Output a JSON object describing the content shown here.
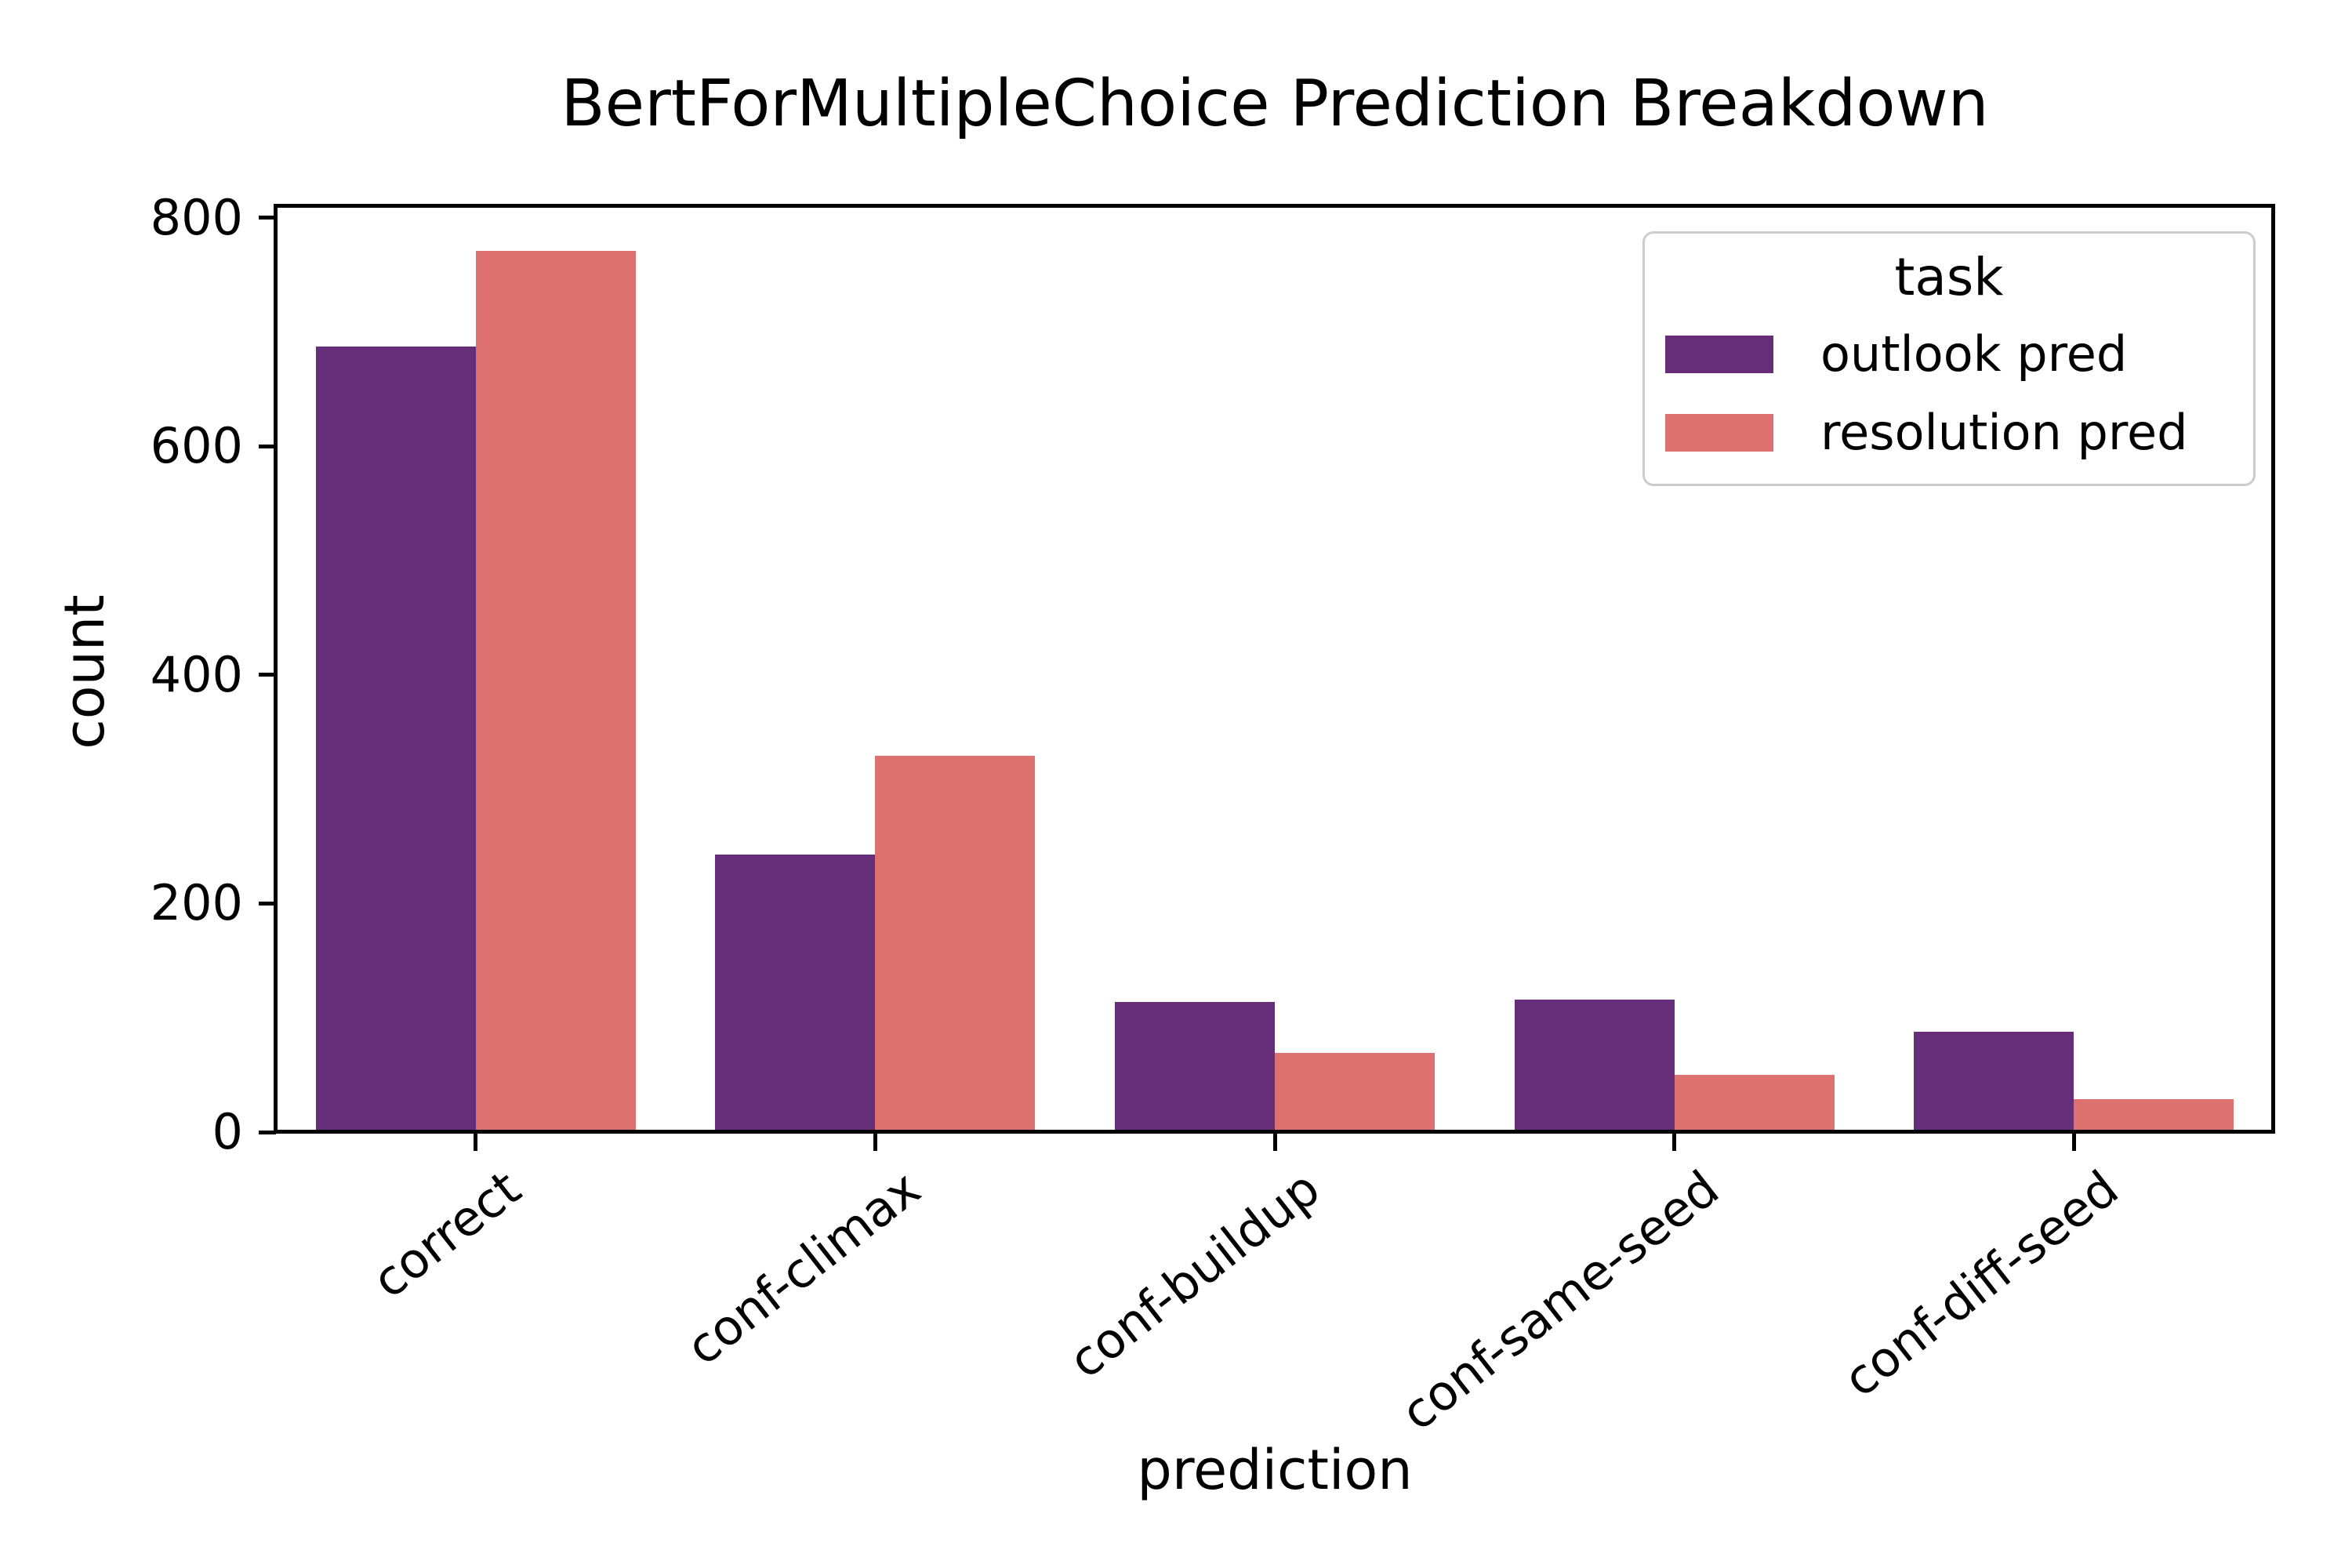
{
  "chart_data": {
    "type": "bar",
    "title": "BertForMultipleChoice Prediction Breakdown",
    "xlabel": "prediction",
    "ylabel": "count",
    "legend_title": "task",
    "legend_position": "upper right",
    "grid": false,
    "categories": [
      "correct",
      "conf-climax",
      "conf-buildup",
      "conf-same-seed",
      "conf-diff-seed"
    ],
    "series": [
      {
        "name": "outlook pred",
        "color": "#662d78",
        "values": [
          687,
          243,
          114,
          116,
          88
        ]
      },
      {
        "name": "resolution pred",
        "color": "#dc7170",
        "values": [
          771,
          329,
          69,
          50,
          29
        ]
      }
    ],
    "ylim": [
      0,
      810
    ],
    "yticks": [
      0,
      200,
      400,
      600,
      800
    ]
  }
}
